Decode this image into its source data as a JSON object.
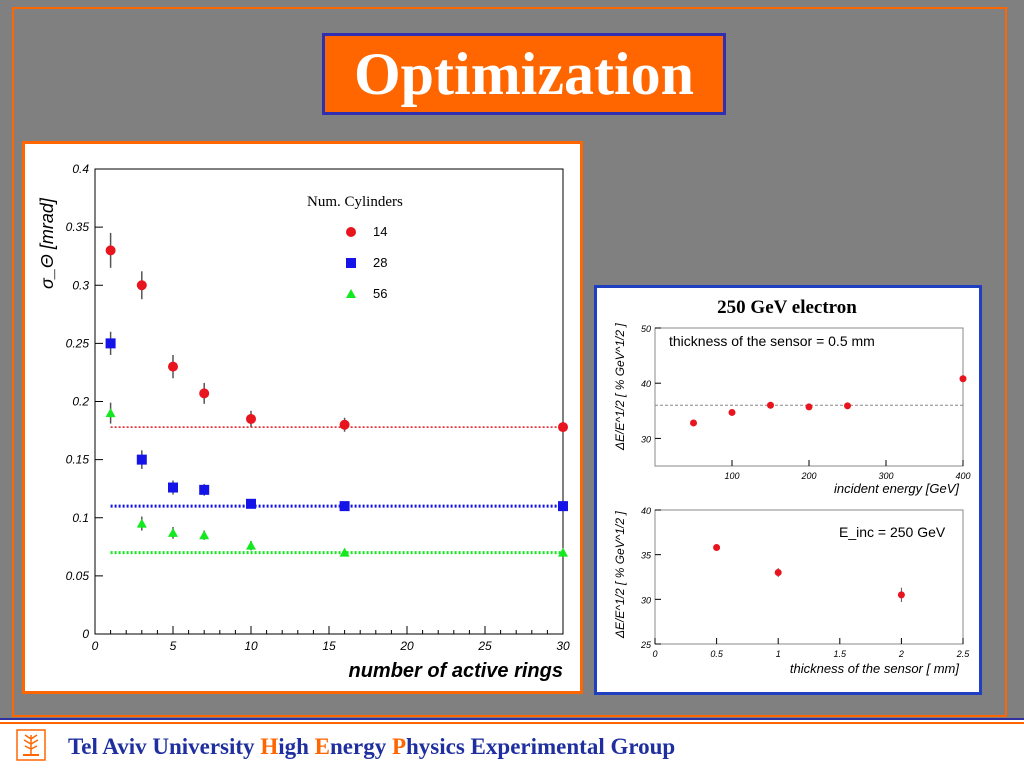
{
  "title": "Optimization",
  "footer": {
    "part1": "Tel Aviv University ",
    "h": "H",
    "igh": "igh ",
    "e": "E",
    "nergy": "nergy ",
    "p": "P",
    "rest": "hysics Experimental Group"
  },
  "colors": {
    "background": "#808080",
    "accent": "#ff6600",
    "blue": "#1f2f9f"
  },
  "chart_data": [
    {
      "type": "scatter",
      "title": "",
      "xlabel": "number of active rings",
      "ylabel": "σ_Θ [mrad]",
      "xlim": [
        0,
        30
      ],
      "ylim": [
        0,
        0.4
      ],
      "xticks": [
        "0",
        "5",
        "10",
        "15",
        "20",
        "25",
        "30"
      ],
      "yticks": [
        "0",
        "0.05",
        "0.1",
        "0.15",
        "0.2",
        "0.25",
        "0.3",
        "0.35",
        "0.4"
      ],
      "legend_title": "Num. Cylinders",
      "legend_position": "top-center",
      "series": [
        {
          "name": "14",
          "color": "#e8141e",
          "marker": "circle",
          "x": [
            1,
            3,
            5,
            7,
            10,
            16,
            30
          ],
          "y": [
            0.33,
            0.3,
            0.23,
            0.207,
            0.185,
            0.18,
            0.178
          ],
          "err": [
            0.015,
            0.012,
            0.01,
            0.009,
            0.007,
            0.006,
            0.006
          ],
          "asymptote": 0.178
        },
        {
          "name": "28",
          "color": "#1414e8",
          "marker": "square",
          "x": [
            1,
            3,
            5,
            7,
            10,
            16,
            30
          ],
          "y": [
            0.25,
            0.15,
            0.126,
            0.124,
            0.112,
            0.11,
            0.11
          ],
          "err": [
            0.01,
            0.008,
            0.006,
            0.005,
            0.004,
            0.004,
            0.004
          ],
          "asymptote": 0.11
        },
        {
          "name": "56",
          "color": "#14e81e",
          "marker": "triangle",
          "x": [
            1,
            3,
            5,
            7,
            10,
            16,
            30
          ],
          "y": [
            0.19,
            0.095,
            0.087,
            0.085,
            0.076,
            0.07,
            0.07
          ],
          "err": [
            0.009,
            0.006,
            0.005,
            0.004,
            0.004,
            0.003,
            0.003
          ],
          "asymptote": 0.07
        }
      ]
    },
    {
      "type": "scatter",
      "title": "250 GeV electron",
      "annotation": "thickness of the sensor = 0.5 mm",
      "xlabel": "incident energy [GeV]",
      "ylabel": "ΔE/E^1/2 [ % GeV^1/2 ]",
      "xlim": [
        0,
        400
      ],
      "ylim": [
        25,
        50
      ],
      "xticks": [
        "100",
        "200",
        "300",
        "400"
      ],
      "yticks": [
        "30",
        "40",
        "50"
      ],
      "reference_line": 36,
      "series": [
        {
          "color": "#e8141e",
          "x": [
            50,
            100,
            150,
            200,
            250,
            400
          ],
          "y": [
            32.8,
            34.7,
            36.0,
            35.7,
            35.9,
            40.8
          ]
        }
      ]
    },
    {
      "type": "scatter",
      "annotation": "E_inc = 250 GeV",
      "xlabel": "thickness of the sensor [ mm]",
      "ylabel": "ΔE/E^1/2 [ % GeV^1/2 ]",
      "xlim": [
        0,
        2.5
      ],
      "ylim": [
        25,
        40
      ],
      "xticks": [
        "0",
        "0.5",
        "1",
        "1.5",
        "2",
        "2.5"
      ],
      "yticks": [
        "25",
        "30",
        "35",
        "40"
      ],
      "series": [
        {
          "color": "#e8141e",
          "x": [
            0.5,
            1.0,
            2.0
          ],
          "y": [
            35.8,
            33.0,
            30.5
          ],
          "err": [
            0.25,
            0.5,
            0.8
          ]
        }
      ]
    }
  ]
}
